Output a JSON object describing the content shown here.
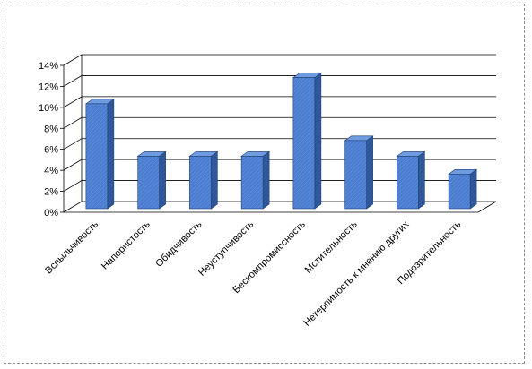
{
  "chart_data": {
    "type": "bar",
    "categories": [
      "Вспыльчивость",
      "Напористость",
      "Обидчивость",
      "Неуступчивость",
      "Бескомпромиссность",
      "Мстительность",
      "Нетерпимость к мнению других",
      "Подозрительность"
    ],
    "values": [
      10.0,
      5.0,
      5.0,
      5.0,
      12.5,
      6.5,
      5.0,
      3.3
    ],
    "title": "",
    "xlabel": "",
    "ylabel": "",
    "ylim": [
      0,
      14
    ],
    "y_ticks": [
      "0%",
      "2%",
      "4%",
      "6%",
      "8%",
      "10%",
      "12%",
      "14%"
    ],
    "grid": true,
    "legend": "none",
    "colors": {
      "bar": "#4a7ccf",
      "bar_top": "#6f9be0",
      "bar_side": "#2c5597",
      "gridline": "#000000"
    }
  }
}
